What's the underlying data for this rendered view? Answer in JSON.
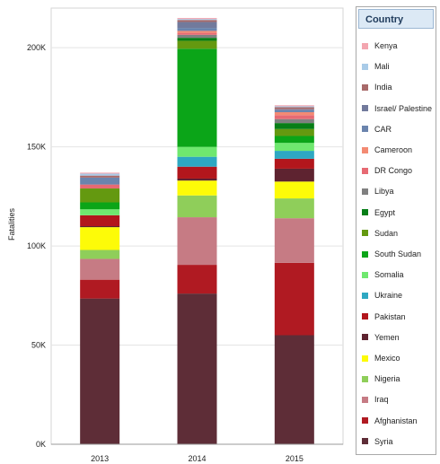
{
  "legend": {
    "title": "Country"
  },
  "colors": {
    "Syria": "#5e2d37",
    "Afghanistan": "#b01a22",
    "Iraq": "#c67b84",
    "Nigeria": "#8fce5a",
    "Mexico": "#fdfb08",
    "Yemen": "#5e2330",
    "Pakistan": "#b2161c",
    "Ukraine": "#2ea8c2",
    "Somalia": "#6fe86f",
    "South Sudan": "#0ba518",
    "Sudan": "#649910",
    "Egypt": "#077e17",
    "Libya": "#808080",
    "DR Congo": "#e76a73",
    "Cameroon": "#f38a73",
    "CAR": "#6b84ad",
    "Israel/ Palestine": "#727a9c",
    "India": "#a86a6a",
    "Mali": "#a9cbe8",
    "Kenya": "#f3a6b0"
  },
  "chart_data": {
    "type": "bar",
    "stacked": true,
    "categories": [
      "2013",
      "2014",
      "2015"
    ],
    "ylabel": "Fatalities",
    "xlabel": "",
    "ylim": [
      0,
      220000
    ],
    "yticks": [
      0,
      50000,
      100000,
      150000,
      200000
    ],
    "ytick_labels": [
      "0K",
      "50K",
      "100K",
      "150K",
      "200K"
    ],
    "grid": true,
    "legend_position": "right",
    "series": [
      {
        "name": "Syria",
        "values": [
          73500,
          76000,
          55000
        ]
      },
      {
        "name": "Afghanistan",
        "values": [
          9500,
          14500,
          36500
        ]
      },
      {
        "name": "Iraq",
        "values": [
          10500,
          24000,
          22500
        ]
      },
      {
        "name": "Nigeria",
        "values": [
          4500,
          11000,
          10000
        ]
      },
      {
        "name": "Mexico",
        "values": [
          11500,
          7500,
          8500
        ]
      },
      {
        "name": "Yemen",
        "values": [
          500,
          1000,
          6500
        ]
      },
      {
        "name": "Pakistan",
        "values": [
          5500,
          6000,
          5000
        ]
      },
      {
        "name": "Ukraine",
        "values": [
          0,
          5000,
          4000
        ]
      },
      {
        "name": "Somalia",
        "values": [
          3000,
          5000,
          4000
        ]
      },
      {
        "name": "South Sudan",
        "values": [
          3500,
          49500,
          3500
        ]
      },
      {
        "name": "Sudan",
        "values": [
          7000,
          4000,
          3500
        ]
      },
      {
        "name": "Egypt",
        "values": [
          0,
          1500,
          3000
        ]
      },
      {
        "name": "Libya",
        "values": [
          0,
          1500,
          2000
        ]
      },
      {
        "name": "DR Congo",
        "values": [
          2000,
          1000,
          2000
        ]
      },
      {
        "name": "Cameroon",
        "values": [
          0,
          1000,
          1500
        ]
      },
      {
        "name": "CAR",
        "values": [
          3500,
          1500,
          1000
        ]
      },
      {
        "name": "Israel/ Palestine",
        "values": [
          0,
          3000,
          500
        ]
      },
      {
        "name": "India",
        "values": [
          1000,
          1000,
          1000
        ]
      },
      {
        "name": "Mali",
        "values": [
          1000,
          500,
          500
        ]
      },
      {
        "name": "Kenya",
        "values": [
          500,
          500,
          500
        ]
      }
    ]
  }
}
